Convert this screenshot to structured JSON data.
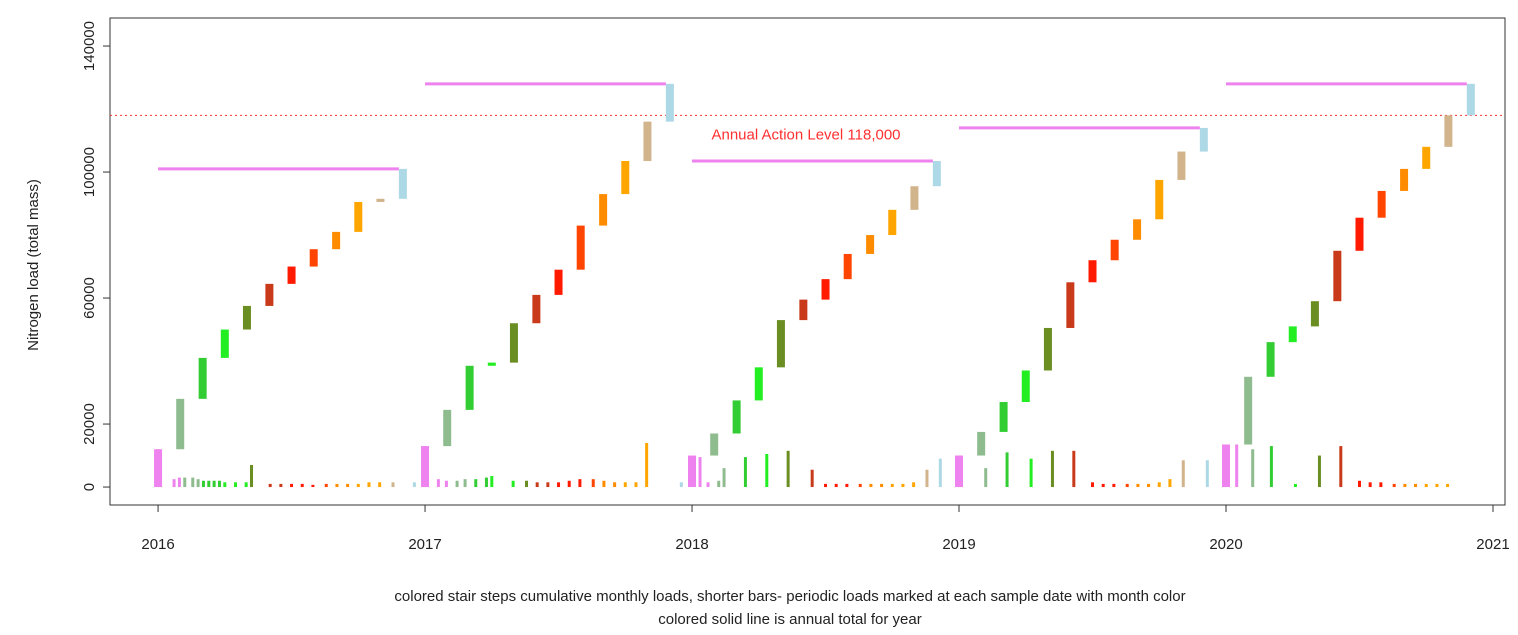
{
  "chart_data": {
    "type": "bar",
    "y_label": "Nitrogen load (total mass)",
    "caption": [
      "colored stair steps cumulative monthly loads, shorter bars- periodic loads marked at each sample date with month color",
      "colored solid line is annual total for year"
    ],
    "xlim": [
      2015.82,
      2021.045
    ],
    "ylim": [
      -5700,
      148900
    ],
    "xticks": [
      2016,
      2017,
      2018,
      2019,
      2020,
      2021
    ],
    "yticks": [
      0,
      20000,
      60000,
      100000,
      140000
    ],
    "month_colors": [
      "#ee82ee",
      "#8fbc8f",
      "#32cd32",
      "#22ee22",
      "#6b8e23",
      "#c83a1a",
      "#ff1a00",
      "#ff4500",
      "#ff8c00",
      "#ffa500",
      "#d2b48c",
      "#add8e6"
    ],
    "annual_color": "#ee82ee",
    "action_level": {
      "value": 118000,
      "label": "Annual Action Level 118,000",
      "color": "#ff3030"
    },
    "years": [
      {
        "step_x": [
          2016,
          2016.083,
          2016.167,
          2016.25,
          2016.333,
          2016.417,
          2016.5,
          2016.583,
          2016.667,
          2016.75,
          2016.833,
          2016.917
        ],
        "monthly_loads": [
          12000,
          16000,
          13000,
          9000,
          7500,
          7000,
          5500,
          5500,
          5500,
          9500,
          1000,
          9500
        ],
        "annual_total": 101000,
        "sample_x": [
          2016.0,
          2016.06,
          2016.08,
          2016.1,
          2016.13,
          2016.15,
          2016.17,
          2016.19,
          2016.21,
          2016.23,
          2016.25,
          2016.29,
          2016.33,
          2016.35,
          2016.42,
          2016.46,
          2016.5,
          2016.54,
          2016.58,
          2016.63,
          2016.67,
          2016.71,
          2016.75,
          2016.79,
          2016.83,
          2016.88,
          2016.96
        ],
        "sample_loads": [
          12000,
          2500,
          3000,
          3000,
          3000,
          2500,
          2000,
          2000,
          2000,
          2000,
          1500,
          1500,
          1500,
          7000,
          1000,
          1000,
          1000,
          1000,
          700,
          1000,
          1000,
          1000,
          1000,
          1500,
          1500,
          1500,
          1500
        ]
      },
      {
        "step_x": [
          2017,
          2017.083,
          2017.167,
          2017.25,
          2017.333,
          2017.417,
          2017.5,
          2017.583,
          2017.667,
          2017.75,
          2017.833,
          2017.917
        ],
        "monthly_loads": [
          13000,
          11500,
          14000,
          1000,
          12500,
          9000,
          8000,
          14000,
          10000,
          10500,
          12500,
          12000
        ],
        "annual_total": 128000,
        "sample_x": [
          2017.0,
          2017.05,
          2017.08,
          2017.12,
          2017.15,
          2017.19,
          2017.23,
          2017.25,
          2017.33,
          2017.38,
          2017.42,
          2017.46,
          2017.5,
          2017.54,
          2017.58,
          2017.63,
          2017.67,
          2017.71,
          2017.75,
          2017.79,
          2017.83,
          2017.96
        ],
        "sample_loads": [
          13000,
          2500,
          2000,
          2000,
          2500,
          2500,
          3000,
          3500,
          2000,
          2000,
          1500,
          1500,
          1500,
          2000,
          2500,
          2500,
          2000,
          1500,
          1500,
          1500,
          14000,
          1500
        ]
      },
      {
        "step_x": [
          2018,
          2018.083,
          2018.167,
          2018.25,
          2018.333,
          2018.417,
          2018.5,
          2018.583,
          2018.667,
          2018.75,
          2018.833,
          2018.917
        ],
        "monthly_loads": [
          10000,
          7000,
          10500,
          10500,
          15000,
          6500,
          6500,
          8000,
          6000,
          8000,
          7500,
          8000
        ],
        "annual_total": 103500,
        "sample_x": [
          2018.03,
          2018.06,
          2018.1,
          2018.12,
          2018.2,
          2018.28,
          2018.36,
          2018.45,
          2018.5,
          2018.54,
          2018.58,
          2018.63,
          2018.67,
          2018.71,
          2018.75,
          2018.79,
          2018.83,
          2018.88,
          2018.93
        ],
        "sample_loads": [
          9500,
          1500,
          2000,
          6000,
          9500,
          10500,
          11500,
          5500,
          1000,
          1000,
          1000,
          1000,
          1000,
          1000,
          1000,
          1000,
          1500,
          5500,
          9000
        ]
      },
      {
        "step_x": [
          2019,
          2019.083,
          2019.167,
          2019.25,
          2019.333,
          2019.417,
          2019.5,
          2019.583,
          2019.667,
          2019.75,
          2019.833,
          2019.917
        ],
        "monthly_loads": [
          10000,
          7500,
          9500,
          10000,
          13500,
          14500,
          7000,
          6500,
          6500,
          12500,
          9000,
          7500
        ],
        "annual_total": 114000,
        "sample_x": [
          2019.0,
          2019.1,
          2019.18,
          2019.27,
          2019.35,
          2019.43,
          2019.5,
          2019.54,
          2019.58,
          2019.63,
          2019.67,
          2019.71,
          2019.75,
          2019.79,
          2019.84,
          2019.93
        ],
        "sample_loads": [
          10000,
          6000,
          11000,
          9000,
          11500,
          11500,
          1500,
          1000,
          1000,
          1000,
          1000,
          1000,
          1500,
          2500,
          8500,
          8500
        ]
      },
      {
        "step_x": [
          2020,
          2020.083,
          2020.167,
          2020.25,
          2020.333,
          2020.417,
          2020.5,
          2020.583,
          2020.667,
          2020.75,
          2020.833,
          2020.917
        ],
        "monthly_loads": [
          13500,
          21500,
          11000,
          5000,
          8000,
          16000,
          10500,
          8500,
          7000,
          7000,
          10000,
          10000
        ],
        "annual_total": 128000,
        "sample_x": [
          2020.0,
          2020.04,
          2020.1,
          2020.17,
          2020.26,
          2020.35,
          2020.43,
          2020.5,
          2020.54,
          2020.58,
          2020.63,
          2020.67,
          2020.71,
          2020.75,
          2020.79,
          2020.83
        ],
        "sample_loads": [
          13000,
          13500,
          12000,
          13000,
          1000,
          10000,
          13000,
          2000,
          1500,
          1500,
          1000,
          1000,
          1000,
          1000,
          1000,
          1000
        ]
      }
    ]
  }
}
